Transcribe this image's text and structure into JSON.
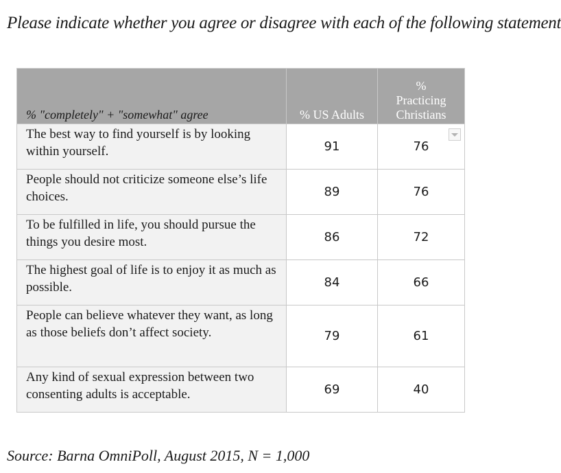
{
  "title": "Please indicate whether you agree or disagree with each of the following statements.",
  "source": "Source: Barna OmniPoll, August 2015, N = 1,000",
  "icons": {
    "filter": "dropdown-arrow-icon"
  },
  "colors": {
    "header_bg": "#a6a6a6",
    "label_bg": "#f2f2f2",
    "border": "#c8c8c8"
  },
  "chart_data": {
    "type": "table",
    "title": "Please indicate whether you agree or disagree with each of the following statements.",
    "row_header": "% \"completely\" + \"somewhat\" agree",
    "columns": [
      "% US Adults",
      "%\nPracticing\nChristians"
    ],
    "rows": [
      {
        "label": "The best way to find yourself is by looking within yourself.",
        "values": [
          "91",
          "76"
        ]
      },
      {
        "label": "People should not criticize someone else’s life choices.",
        "values": [
          "89",
          "76"
        ]
      },
      {
        "label": "To be fulfilled in life, you should pursue the things you desire most.",
        "values": [
          "86",
          "72"
        ]
      },
      {
        "label": "The highest goal of life is to enjoy it as much as possible.",
        "values": [
          "84",
          "66"
        ]
      },
      {
        "label": "People can believe whatever they want, as long as those beliefs don’t affect society.",
        "values": [
          "79",
          "61"
        ]
      },
      {
        "label": "Any kind of sexual expression between two consenting adults is acceptable.",
        "values": [
          "69",
          "40"
        ]
      }
    ],
    "source": "Source: Barna OmniPoll, August 2015, N = 1,000"
  }
}
